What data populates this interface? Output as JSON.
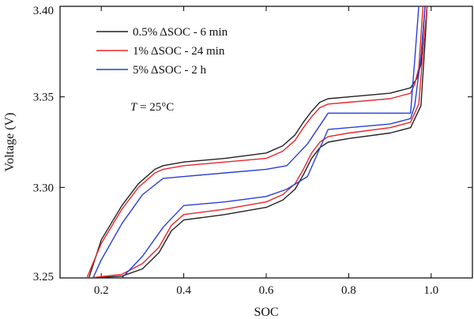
{
  "chart_data": {
    "type": "line",
    "title": "",
    "xlabel": "SOC",
    "ylabel": "Voltage (V)",
    "xlim": [
      0.1,
      1.1
    ],
    "ylim": [
      3.25,
      3.4
    ],
    "xticks": [
      0.2,
      0.4,
      0.6,
      0.8,
      1.0
    ],
    "xtick_labels": [
      "0.2",
      "0.4",
      "0.6",
      "0.8",
      "1.0"
    ],
    "yticks": [
      3.25,
      3.3,
      3.35,
      3.4
    ],
    "ytick_labels": [
      "3.25",
      "3.30",
      "3.35",
      "3.40"
    ],
    "grid": false,
    "legend_position": "top-left",
    "annotation": {
      "italic": "T",
      "rest": " = 25°C"
    },
    "series": [
      {
        "name": "0.5% ΔSOC - 6 min",
        "color": "#222222",
        "charge": {
          "x": [
            0.17,
            0.2,
            0.25,
            0.29,
            0.33,
            0.35,
            0.4,
            0.5,
            0.6,
            0.64,
            0.67,
            0.69,
            0.71,
            0.73,
            0.75,
            0.8,
            0.9,
            0.95,
            0.965,
            0.975,
            0.985
          ],
          "y": [
            3.25,
            3.271,
            3.29,
            3.302,
            3.31,
            3.312,
            3.314,
            3.316,
            3.319,
            3.323,
            3.329,
            3.336,
            3.342,
            3.347,
            3.349,
            3.35,
            3.352,
            3.355,
            3.36,
            3.368,
            3.4
          ]
        },
        "discharge": {
          "x": [
            0.175,
            0.25,
            0.3,
            0.34,
            0.37,
            0.4,
            0.5,
            0.6,
            0.64,
            0.67,
            0.69,
            0.71,
            0.73,
            0.75,
            0.8,
            0.9,
            0.95,
            0.975,
            0.985,
            0.99
          ],
          "y": [
            3.25,
            3.251,
            3.255,
            3.264,
            3.276,
            3.282,
            3.285,
            3.289,
            3.293,
            3.299,
            3.307,
            3.316,
            3.322,
            3.325,
            3.327,
            3.33,
            3.333,
            3.345,
            3.38,
            3.4
          ]
        }
      },
      {
        "name": "1% ΔSOC - 24 min",
        "color": "#e8262a",
        "charge": {
          "x": [
            0.165,
            0.2,
            0.25,
            0.29,
            0.33,
            0.35,
            0.4,
            0.5,
            0.6,
            0.64,
            0.67,
            0.69,
            0.71,
            0.73,
            0.75,
            0.8,
            0.9,
            0.95,
            0.96,
            0.97,
            0.98
          ],
          "y": [
            3.25,
            3.269,
            3.288,
            3.3,
            3.308,
            3.31,
            3.312,
            3.314,
            3.316,
            3.32,
            3.326,
            3.333,
            3.339,
            3.344,
            3.346,
            3.347,
            3.349,
            3.352,
            3.357,
            3.366,
            3.4
          ]
        },
        "discharge": {
          "x": [
            0.17,
            0.25,
            0.3,
            0.34,
            0.37,
            0.4,
            0.5,
            0.6,
            0.64,
            0.67,
            0.69,
            0.71,
            0.73,
            0.75,
            0.8,
            0.9,
            0.95,
            0.97,
            0.98,
            0.99
          ],
          "y": [
            3.25,
            3.252,
            3.258,
            3.267,
            3.279,
            3.285,
            3.288,
            3.292,
            3.296,
            3.302,
            3.31,
            3.319,
            3.325,
            3.328,
            3.33,
            3.333,
            3.336,
            3.346,
            3.375,
            3.4
          ]
        }
      },
      {
        "name": "5% ΔSOC - 2 h",
        "color": "#2a3fd6",
        "charge": {
          "x": [
            0.18,
            0.2,
            0.25,
            0.3,
            0.35,
            0.4,
            0.5,
            0.6,
            0.65,
            0.7,
            0.75,
            0.8,
            0.9,
            0.95,
            0.96,
            0.97
          ],
          "y": [
            3.25,
            3.26,
            3.28,
            3.296,
            3.305,
            3.306,
            3.308,
            3.31,
            3.312,
            3.324,
            3.341,
            3.341,
            3.341,
            3.341,
            3.37,
            3.4
          ]
        },
        "discharge": {
          "x": [
            0.25,
            0.3,
            0.35,
            0.4,
            0.5,
            0.6,
            0.65,
            0.7,
            0.75,
            0.8,
            0.9,
            0.95,
            0.96,
            0.975,
            0.985
          ],
          "y": [
            3.25,
            3.262,
            3.278,
            3.29,
            3.292,
            3.295,
            3.299,
            3.306,
            3.332,
            3.333,
            3.335,
            3.338,
            3.345,
            3.372,
            3.4
          ]
        }
      }
    ]
  }
}
